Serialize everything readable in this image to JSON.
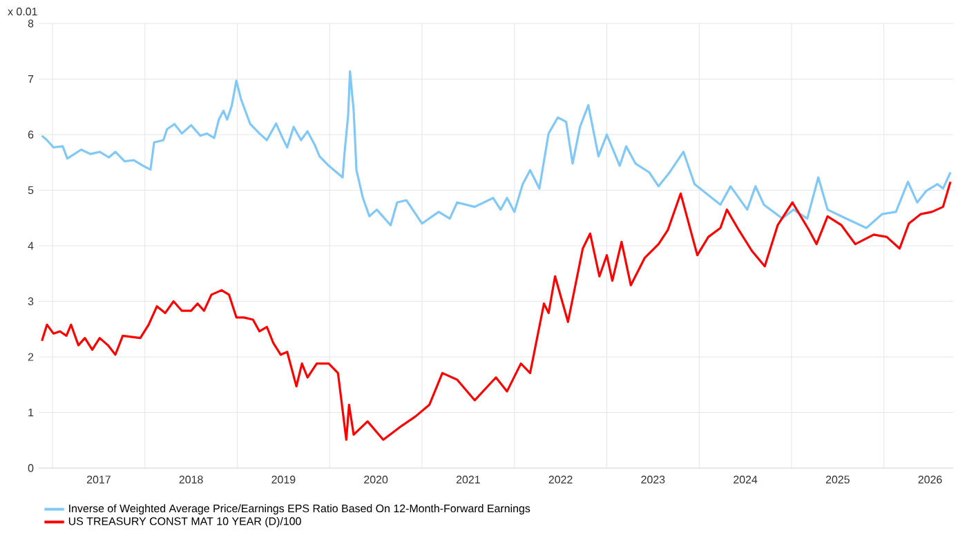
{
  "chart_data": {
    "type": "line",
    "ylabel": "x 0.01",
    "xlim": [
      2016.85,
      2026.75
    ],
    "ylim": [
      0,
      8
    ],
    "yticks": [
      0,
      1,
      2,
      3,
      4,
      5,
      6,
      7,
      8
    ],
    "xticks": [
      {
        "value": 2017,
        "label": null
      },
      {
        "value": 2018,
        "label": null
      },
      {
        "value": 2019,
        "label": null
      },
      {
        "value": 2020,
        "label": null
      },
      {
        "value": 2021,
        "label": null
      },
      {
        "value": 2022,
        "label": null
      },
      {
        "value": 2023,
        "label": null
      },
      {
        "value": 2024,
        "label": null
      },
      {
        "value": 2025,
        "label": null
      },
      {
        "value": 2026,
        "label": null
      },
      {
        "value": 2017.5,
        "label": "2017"
      },
      {
        "value": 2018.5,
        "label": "2018"
      },
      {
        "value": 2019.5,
        "label": "2019"
      },
      {
        "value": 2020.5,
        "label": "2020"
      },
      {
        "value": 2021.5,
        "label": "2021"
      },
      {
        "value": 2022.5,
        "label": "2022"
      },
      {
        "value": 2023.5,
        "label": "2023"
      },
      {
        "value": 2024.5,
        "label": "2024"
      },
      {
        "value": 2025.5,
        "label": "2025"
      },
      {
        "value": 2026.5,
        "label": "2026"
      }
    ],
    "grid": true,
    "legend": "bottom",
    "line_style": "solid",
    "marker": "none",
    "series": [
      {
        "name": "Inverse of Weighted Average Price/Earnings EPS Ratio Based On 12-Month-Forward Earnings",
        "color": "#7fc8f8",
        "x": [
          2016.885,
          2016.94,
          2017.01,
          2017.11,
          2017.16,
          2017.31,
          2017.41,
          2017.51,
          2017.61,
          2017.68,
          2017.78,
          2017.88,
          2017.98,
          2018.06,
          2018.1,
          2018.2,
          2018.24,
          2018.32,
          2018.4,
          2018.5,
          2018.6,
          2018.67,
          2018.75,
          2018.8,
          2018.85,
          2018.89,
          2018.94,
          2018.99,
          2019.04,
          2019.14,
          2019.24,
          2019.32,
          2019.42,
          2019.49,
          2019.54,
          2019.61,
          2019.69,
          2019.76,
          2019.84,
          2019.89,
          2019.99,
          2020.14,
          2020.16,
          2020.2,
          2020.22,
          2020.26,
          2020.29,
          2020.36,
          2020.43,
          2020.51,
          2020.66,
          2020.73,
          2020.83,
          2021.0,
          2021.18,
          2021.3,
          2021.38,
          2021.57,
          2021.77,
          2021.85,
          2021.92,
          2022.0,
          2022.09,
          2022.17,
          2022.27,
          2022.37,
          2022.47,
          2022.56,
          2022.63,
          2022.71,
          2022.8,
          2022.91,
          2023.0,
          2023.14,
          2023.21,
          2023.31,
          2023.46,
          2023.56,
          2023.68,
          2023.83,
          2023.95,
          2024.23,
          2024.34,
          2024.52,
          2024.61,
          2024.7,
          2024.9,
          2025.02,
          2025.17,
          2025.29,
          2025.39,
          2025.59,
          2025.81,
          2025.98,
          2026.13,
          2026.26,
          2026.36,
          2026.46,
          2026.58,
          2026.64,
          2026.72
        ],
        "values": [
          5.98,
          5.9,
          5.77,
          5.79,
          5.57,
          5.73,
          5.65,
          5.69,
          5.59,
          5.69,
          5.52,
          5.54,
          5.44,
          5.37,
          5.86,
          5.9,
          6.1,
          6.19,
          6.02,
          6.17,
          5.98,
          6.02,
          5.94,
          6.27,
          6.43,
          6.27,
          6.52,
          6.97,
          6.64,
          6.19,
          6.02,
          5.9,
          6.2,
          5.94,
          5.77,
          6.14,
          5.9,
          6.06,
          5.81,
          5.61,
          5.44,
          5.23,
          5.65,
          6.35,
          7.14,
          6.43,
          5.36,
          4.86,
          4.53,
          4.65,
          4.37,
          4.78,
          4.82,
          4.4,
          4.61,
          4.49,
          4.78,
          4.7,
          4.86,
          4.65,
          4.86,
          4.61,
          5.11,
          5.36,
          5.03,
          6.02,
          6.31,
          6.23,
          5.48,
          6.14,
          6.53,
          5.61,
          6.0,
          5.44,
          5.79,
          5.48,
          5.32,
          5.07,
          5.32,
          5.69,
          5.11,
          4.74,
          5.07,
          4.65,
          5.07,
          4.74,
          4.49,
          4.65,
          4.49,
          5.23,
          4.65,
          4.49,
          4.32,
          4.57,
          4.61,
          5.15,
          4.78,
          4.99,
          5.11,
          5.03,
          5.32
        ]
      },
      {
        "name": "US TREASURY CONST MAT 10 YEAR (D)/100",
        "color": "#ff0000",
        "x": [
          2016.885,
          2016.94,
          2017.01,
          2017.08,
          2017.15,
          2017.2,
          2017.28,
          2017.35,
          2017.43,
          2017.51,
          2017.6,
          2017.68,
          2017.76,
          2017.95,
          2018.04,
          2018.13,
          2018.22,
          2018.31,
          2018.4,
          2018.5,
          2018.57,
          2018.64,
          2018.72,
          2018.83,
          2018.91,
          2018.99,
          2019.07,
          2019.17,
          2019.24,
          2019.32,
          2019.39,
          2019.47,
          2019.54,
          2019.64,
          2019.7,
          2019.76,
          2019.86,
          2019.99,
          2020.09,
          2020.18,
          2020.21,
          2020.26,
          2020.41,
          2020.58,
          2020.78,
          2020.93,
          2021.08,
          2021.22,
          2021.38,
          2021.57,
          2021.8,
          2021.92,
          2022.07,
          2022.17,
          2022.32,
          2022.37,
          2022.44,
          2022.58,
          2022.74,
          2022.82,
          2022.92,
          2023.0,
          2023.06,
          2023.16,
          2023.26,
          2023.41,
          2023.56,
          2023.66,
          2023.8,
          2023.98,
          2024.1,
          2024.23,
          2024.3,
          2024.43,
          2024.57,
          2024.71,
          2024.85,
          2025.01,
          2025.19,
          2025.27,
          2025.39,
          2025.54,
          2025.69,
          2025.89,
          2026.03,
          2026.17,
          2026.27,
          2026.4,
          2026.52,
          2026.64,
          2026.72
        ],
        "values": [
          2.29,
          2.58,
          2.42,
          2.46,
          2.38,
          2.58,
          2.21,
          2.34,
          2.13,
          2.34,
          2.21,
          2.04,
          2.38,
          2.34,
          2.58,
          2.91,
          2.79,
          3.0,
          2.83,
          2.83,
          2.96,
          2.83,
          3.12,
          3.2,
          3.12,
          2.71,
          2.71,
          2.67,
          2.46,
          2.54,
          2.25,
          2.04,
          2.09,
          1.47,
          1.88,
          1.63,
          1.88,
          1.88,
          1.71,
          0.51,
          1.14,
          0.6,
          0.84,
          0.51,
          0.76,
          0.93,
          1.14,
          1.71,
          1.59,
          1.22,
          1.63,
          1.38,
          1.88,
          1.71,
          2.96,
          2.79,
          3.45,
          2.63,
          3.95,
          4.22,
          3.45,
          3.83,
          3.37,
          4.07,
          3.29,
          3.78,
          4.03,
          4.28,
          4.94,
          3.83,
          4.16,
          4.32,
          4.65,
          4.28,
          3.91,
          3.63,
          4.37,
          4.78,
          4.28,
          4.03,
          4.53,
          4.37,
          4.03,
          4.2,
          4.16,
          3.95,
          4.4,
          4.57,
          4.61,
          4.7,
          5.15
        ]
      }
    ]
  }
}
